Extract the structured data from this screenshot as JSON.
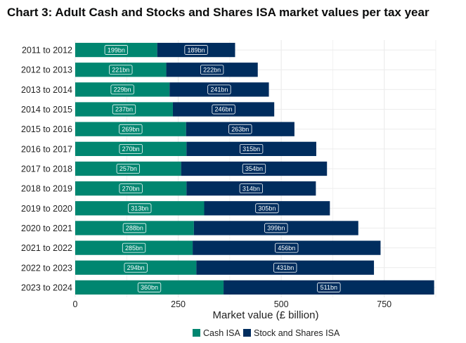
{
  "title": "Chart 3: Adult Cash and Stocks and Shares ISA market values per tax year",
  "colors": {
    "cash": "#008670",
    "stocks": "#002d5e",
    "grid": "#ececec"
  },
  "chart_data": {
    "type": "bar",
    "orientation": "horizontal",
    "stacked": true,
    "title": "Chart 3: Adult Cash and Stocks and Shares ISA market values per tax year",
    "xlabel": "Market value (£ billion)",
    "ylabel": "",
    "xlim": [
      0,
      875
    ],
    "xticks": [
      0,
      250,
      500,
      750
    ],
    "grid": true,
    "legend_position": "bottom",
    "categories": [
      "2011 to 2012",
      "2012 to 2013",
      "2013 to 2014",
      "2014 to 2015",
      "2015 to 2016",
      "2016 to 2017",
      "2017 to 2018",
      "2018 to 2019",
      "2019 to 2020",
      "2020 to 2021",
      "2021 to 2022",
      "2022 to 2023",
      "2023 to 2024"
    ],
    "series": [
      {
        "name": "Cash ISA",
        "values": [
          199,
          221,
          229,
          237,
          269,
          270,
          257,
          270,
          313,
          288,
          285,
          294,
          360
        ],
        "labels": [
          "199bn",
          "221bn",
          "229bn",
          "237bn",
          "269bn",
          "270bn",
          "257bn",
          "270bn",
          "313bn",
          "288bn",
          "285bn",
          "294bn",
          "360bn"
        ]
      },
      {
        "name": "Stock and Shares ISA",
        "values": [
          189,
          222,
          241,
          246,
          263,
          315,
          354,
          314,
          305,
          399,
          456,
          431,
          511
        ],
        "labels": [
          "189bn",
          "222bn",
          "241bn",
          "246bn",
          "263bn",
          "315bn",
          "354bn",
          "314bn",
          "305bn",
          "399bn",
          "456bn",
          "431bn",
          "511bn"
        ]
      }
    ]
  }
}
